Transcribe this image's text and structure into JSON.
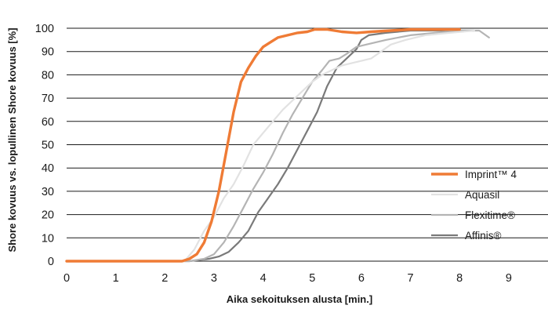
{
  "chart_data": {
    "type": "line",
    "xlabel": "Aika sekoituksen alusta [min.]",
    "ylabel": "Shore kovuus vs. lopullinen Shore kovuus [%]",
    "xlim": [
      0,
      9.8
    ],
    "ylim": [
      0,
      100
    ],
    "x_ticks": [
      "0",
      "1",
      "2",
      "3",
      "4",
      "5",
      "6",
      "7",
      "8",
      "9"
    ],
    "y_ticks": [
      "0",
      "10",
      "20",
      "30",
      "40",
      "50",
      "60",
      "70",
      "80",
      "90",
      "100"
    ],
    "grid": "horizontal",
    "legend_position": "right",
    "series": [
      {
        "name": "Affinis®",
        "color": "#7a7a7a",
        "width": 2.2,
        "points": [
          [
            0,
            0
          ],
          [
            2.5,
            0
          ],
          [
            2.9,
            1
          ],
          [
            3.1,
            2
          ],
          [
            3.3,
            4
          ],
          [
            3.5,
            8
          ],
          [
            3.7,
            13
          ],
          [
            3.9,
            21
          ],
          [
            4.1,
            27
          ],
          [
            4.3,
            33
          ],
          [
            4.5,
            40
          ],
          [
            4.7,
            48
          ],
          [
            4.9,
            56
          ],
          [
            5.1,
            64
          ],
          [
            5.3,
            75
          ],
          [
            5.5,
            83
          ],
          [
            5.7,
            87
          ],
          [
            5.9,
            91
          ],
          [
            6.0,
            95
          ],
          [
            6.15,
            97
          ],
          [
            6.5,
            98
          ],
          [
            7,
            99
          ],
          [
            7.5,
            99
          ],
          [
            8,
            99
          ],
          [
            8.3,
            99
          ]
        ]
      },
      {
        "name": "Flexitime®",
        "color": "#b4b4b4",
        "width": 2.2,
        "points": [
          [
            0,
            0
          ],
          [
            2.5,
            0
          ],
          [
            2.8,
            1
          ],
          [
            3.0,
            3
          ],
          [
            3.2,
            8
          ],
          [
            3.4,
            15
          ],
          [
            3.6,
            23
          ],
          [
            3.8,
            31
          ],
          [
            4.0,
            38
          ],
          [
            4.2,
            46
          ],
          [
            4.4,
            55
          ],
          [
            4.6,
            63
          ],
          [
            4.8,
            70
          ],
          [
            5.0,
            77
          ],
          [
            5.2,
            82
          ],
          [
            5.35,
            86
          ],
          [
            5.55,
            87
          ],
          [
            5.7,
            89
          ],
          [
            5.9,
            92
          ],
          [
            6.1,
            93
          ],
          [
            6.5,
            95
          ],
          [
            7,
            97
          ],
          [
            7.5,
            98
          ],
          [
            8,
            99
          ],
          [
            8.4,
            99
          ],
          [
            8.6,
            96
          ]
        ]
      },
      {
        "name": "Aquasil",
        "color": "#e2e2e2",
        "width": 2.2,
        "points": [
          [
            0,
            0
          ],
          [
            2.4,
            0
          ],
          [
            2.6,
            5
          ],
          [
            2.8,
            13
          ],
          [
            3.0,
            19
          ],
          [
            3.2,
            27
          ],
          [
            3.4,
            33
          ],
          [
            3.6,
            41
          ],
          [
            3.8,
            50
          ],
          [
            4.0,
            55
          ],
          [
            4.2,
            60
          ],
          [
            4.4,
            65
          ],
          [
            4.6,
            69
          ],
          [
            4.8,
            73
          ],
          [
            5.0,
            77
          ],
          [
            5.2,
            80
          ],
          [
            5.4,
            82
          ],
          [
            5.6,
            84
          ],
          [
            5.8,
            85
          ],
          [
            6.0,
            86
          ],
          [
            6.2,
            87
          ],
          [
            6.4,
            90
          ],
          [
            6.6,
            93
          ],
          [
            6.9,
            95
          ],
          [
            7.3,
            97
          ],
          [
            7.8,
            98
          ],
          [
            8.3,
            99
          ]
        ]
      },
      {
        "name": "Imprint™ 4",
        "color": "#ef7b35",
        "width": 3.4,
        "points": [
          [
            0,
            0
          ],
          [
            2.35,
            0
          ],
          [
            2.5,
            1
          ],
          [
            2.65,
            3
          ],
          [
            2.8,
            8
          ],
          [
            2.95,
            17
          ],
          [
            3.1,
            30
          ],
          [
            3.25,
            47
          ],
          [
            3.4,
            64
          ],
          [
            3.55,
            77
          ],
          [
            3.7,
            83
          ],
          [
            3.85,
            88
          ],
          [
            4.0,
            92
          ],
          [
            4.15,
            94
          ],
          [
            4.3,
            96
          ],
          [
            4.5,
            97
          ],
          [
            4.7,
            98
          ],
          [
            4.9,
            98.5
          ],
          [
            5.05,
            99.5
          ],
          [
            5.3,
            99.5
          ],
          [
            5.6,
            98.5
          ],
          [
            5.9,
            98
          ],
          [
            6.2,
            98.5
          ],
          [
            6.6,
            99
          ],
          [
            7.0,
            99.5
          ],
          [
            7.5,
            99.5
          ],
          [
            8.0,
            99.5
          ]
        ]
      }
    ],
    "legend": [
      {
        "label": "Imprint™ 4",
        "color": "#ef7b35",
        "width": 3.4
      },
      {
        "label": "Aquasil",
        "color": "#e2e2e2",
        "width": 2.2
      },
      {
        "label": "Flexitime®",
        "color": "#b4b4b4",
        "width": 2.2
      },
      {
        "label": "Affinis®",
        "color": "#7a7a7a",
        "width": 2.2
      }
    ]
  }
}
